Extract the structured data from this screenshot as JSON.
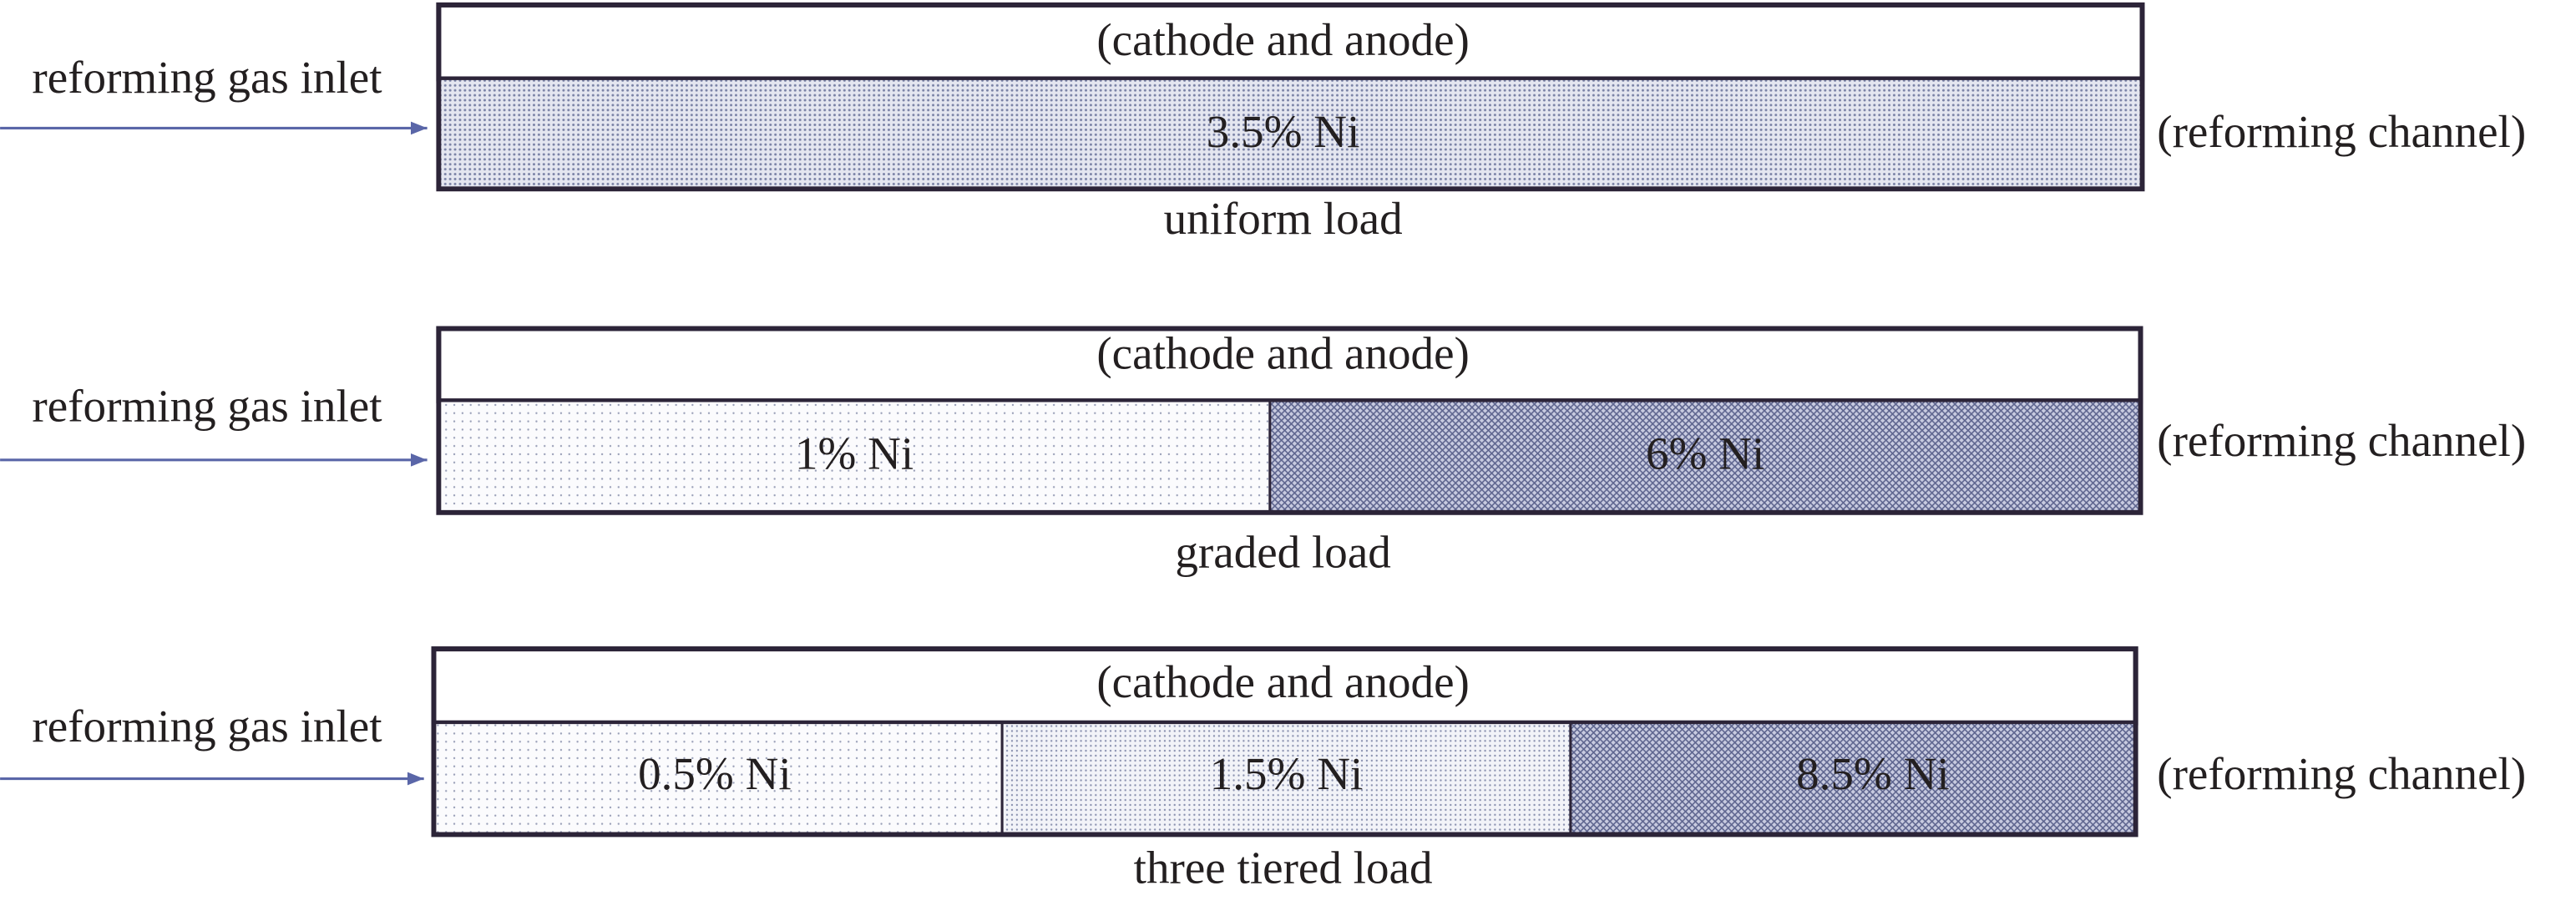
{
  "panels": [
    {
      "inlet": "reforming gas inlet",
      "top": "(cathode and anode)",
      "segments": [
        "3.5% Ni"
      ],
      "channel": "(reforming channel)",
      "caption": "uniform load"
    },
    {
      "inlet": "reforming gas inlet",
      "top": "(cathode and anode)",
      "segments": [
        "1% Ni",
        "6% Ni"
      ],
      "channel": "(reforming channel)",
      "caption": "graded load"
    },
    {
      "inlet": "reforming gas inlet",
      "top": "(cathode and anode)",
      "segments": [
        "0.5% Ni",
        "1.5% Ni",
        "8.5% Ni"
      ],
      "channel": "(reforming channel)",
      "caption": "three tiered load"
    }
  ]
}
